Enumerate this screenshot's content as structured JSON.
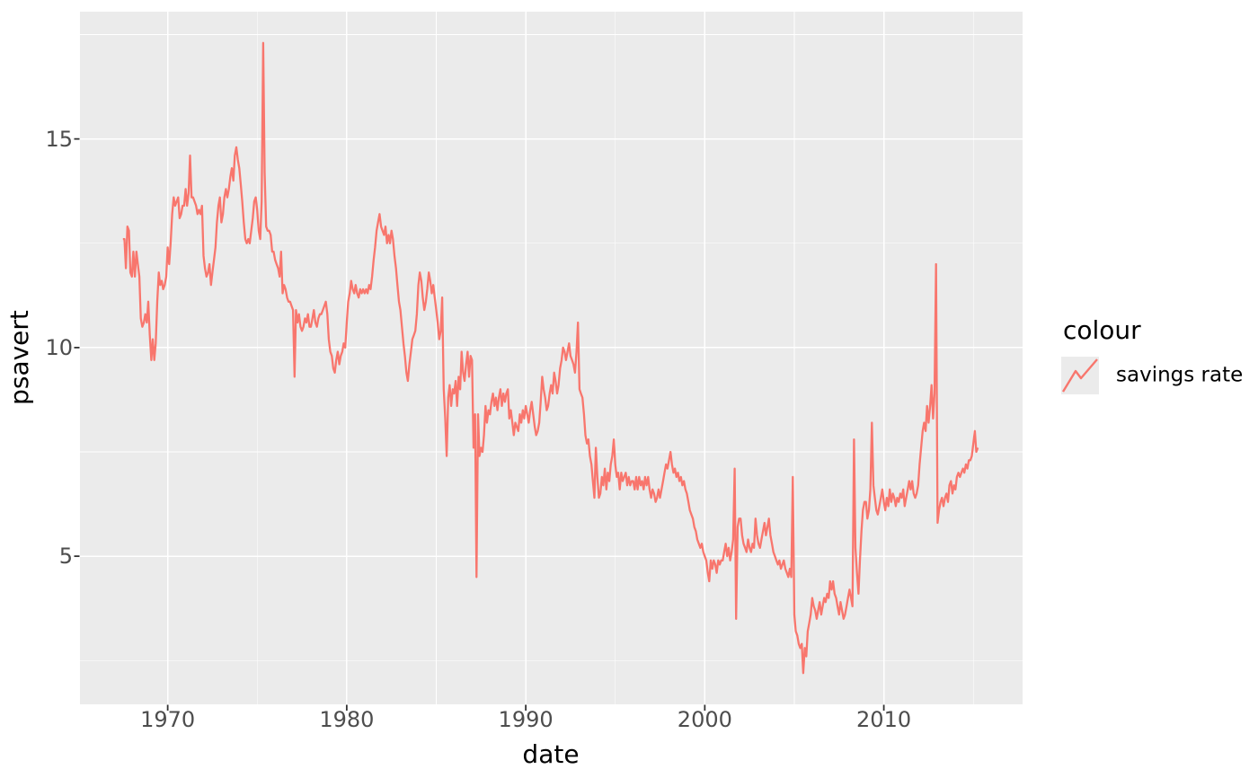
{
  "figure": {
    "x_axis_title": "date",
    "y_axis_title": "psavert",
    "legend": {
      "title": "colour",
      "items": [
        {
          "label": "savings rate"
        }
      ]
    }
  },
  "colors": {
    "line": "#F8766D",
    "panel_bg": "#EBEBEB",
    "grid": "#FFFFFF",
    "tick_mark": "#333333",
    "tick_label": "#4D4D4D",
    "title_text": "#000000",
    "legend_key_bg": "#EBEBEB"
  },
  "chart_data": {
    "type": "line",
    "title": "",
    "xlabel": "date",
    "ylabel": "psavert",
    "legend_title": "colour",
    "legend_position": "right",
    "grid": true,
    "x_unit": "decimal_year",
    "xlim": [
      1965.1,
      2017.75
    ],
    "ylim": [
      1.45,
      18.05
    ],
    "x_ticks": [
      1970,
      1980,
      1990,
      2000,
      2010
    ],
    "x_minor_ticks": [
      1975,
      1985,
      1995,
      2005,
      2015
    ],
    "y_ticks": [
      5,
      10,
      15
    ],
    "y_minor_ticks": [
      2.5,
      7.5,
      12.5,
      17.5
    ],
    "series": [
      {
        "name": "savings rate",
        "color": "#F8766D",
        "start": 1967.5,
        "samples_per_year": 12,
        "values": [
          12.6,
          12.6,
          11.9,
          12.9,
          12.8,
          11.8,
          11.7,
          12.3,
          11.7,
          12.3,
          12.0,
          11.7,
          10.7,
          10.5,
          10.6,
          10.8,
          10.6,
          11.1,
          10.3,
          9.7,
          10.2,
          9.7,
          10.1,
          11.1,
          11.8,
          11.5,
          11.6,
          11.4,
          11.5,
          11.7,
          12.4,
          12.0,
          12.5,
          13.2,
          13.6,
          13.4,
          13.5,
          13.6,
          13.1,
          13.2,
          13.4,
          13.4,
          13.8,
          13.4,
          13.7,
          14.6,
          13.6,
          13.6,
          13.5,
          13.4,
          13.2,
          13.3,
          13.2,
          13.4,
          12.2,
          11.9,
          11.7,
          11.8,
          12.0,
          11.5,
          11.8,
          12.1,
          12.4,
          13.0,
          13.4,
          13.6,
          13.0,
          13.2,
          13.6,
          13.8,
          13.6,
          13.8,
          14.1,
          14.3,
          14.0,
          14.6,
          14.8,
          14.5,
          14.3,
          13.9,
          13.5,
          13.0,
          12.6,
          12.5,
          12.6,
          12.5,
          12.8,
          13.1,
          13.5,
          13.6,
          13.3,
          12.8,
          12.6,
          13.5,
          17.3,
          14.2,
          12.9,
          12.8,
          12.8,
          12.7,
          12.3,
          12.3,
          12.1,
          12.0,
          11.9,
          11.7,
          12.3,
          11.3,
          11.5,
          11.4,
          11.2,
          11.1,
          11.1,
          11.0,
          10.9,
          9.3,
          10.9,
          10.6,
          10.8,
          10.5,
          10.4,
          10.5,
          10.7,
          10.6,
          10.8,
          10.5,
          10.5,
          10.7,
          10.9,
          10.6,
          10.5,
          10.7,
          10.8,
          10.8,
          10.9,
          11.0,
          11.1,
          10.8,
          10.2,
          9.9,
          9.8,
          9.5,
          9.4,
          9.7,
          9.9,
          9.6,
          9.8,
          9.9,
          10.1,
          10.0,
          10.6,
          11.1,
          11.3,
          11.6,
          11.4,
          11.3,
          11.5,
          11.3,
          11.2,
          11.4,
          11.3,
          11.4,
          11.3,
          11.4,
          11.3,
          11.5,
          11.4,
          11.7,
          12.1,
          12.4,
          12.8,
          13.0,
          13.2,
          12.9,
          12.8,
          12.7,
          12.9,
          12.5,
          12.7,
          12.5,
          12.8,
          12.6,
          12.2,
          11.9,
          11.5,
          11.1,
          10.9,
          10.5,
          10.1,
          9.8,
          9.4,
          9.2,
          9.6,
          9.9,
          10.2,
          10.3,
          10.4,
          10.8,
          11.5,
          11.8,
          11.6,
          11.2,
          10.9,
          11.1,
          11.4,
          11.8,
          11.6,
          11.3,
          11.5,
          11.2,
          10.9,
          10.6,
          10.2,
          10.4,
          11.2,
          9.0,
          8.3,
          7.4,
          8.8,
          9.1,
          8.6,
          9.0,
          8.9,
          9.2,
          8.6,
          9.3,
          9.0,
          9.9,
          9.4,
          9.2,
          9.6,
          9.9,
          9.3,
          9.8,
          9.7,
          7.6,
          8.4,
          4.5,
          8.4,
          7.4,
          7.6,
          7.5,
          7.9,
          8.6,
          8.2,
          8.5,
          8.4,
          8.7,
          8.9,
          8.6,
          8.8,
          8.5,
          8.8,
          9.0,
          8.6,
          8.9,
          8.7,
          8.9,
          9.0,
          8.3,
          8.5,
          8.2,
          7.9,
          8.2,
          8.1,
          8.0,
          8.4,
          8.2,
          8.5,
          8.3,
          8.6,
          8.4,
          8.2,
          8.5,
          8.7,
          8.4,
          8.1,
          7.9,
          8.0,
          8.2,
          8.7,
          9.3,
          9.0,
          8.8,
          8.5,
          8.6,
          8.9,
          9.1,
          8.9,
          9.4,
          9.2,
          8.9,
          9.1,
          9.5,
          9.7,
          10.0,
          9.9,
          9.7,
          9.9,
          10.1,
          9.8,
          9.7,
          9.6,
          9.4,
          9.9,
          10.6,
          9.0,
          8.9,
          8.8,
          8.4,
          7.9,
          7.7,
          7.8,
          7.4,
          7.2,
          6.8,
          6.4,
          7.6,
          6.9,
          6.4,
          6.5,
          6.9,
          6.7,
          7.1,
          6.6,
          7.0,
          6.8,
          7.2,
          7.4,
          7.8,
          7.2,
          6.9,
          7.0,
          6.6,
          7.0,
          6.8,
          6.9,
          7.0,
          6.7,
          6.9,
          6.7,
          6.8,
          6.8,
          6.6,
          6.9,
          6.6,
          6.9,
          6.7,
          6.8,
          6.6,
          6.9,
          6.7,
          6.9,
          6.6,
          6.4,
          6.6,
          6.5,
          6.3,
          6.4,
          6.6,
          6.4,
          6.6,
          6.8,
          7.0,
          7.2,
          7.1,
          7.3,
          7.5,
          7.2,
          7.0,
          7.1,
          6.9,
          7.0,
          6.8,
          6.9,
          6.7,
          6.8,
          6.6,
          6.5,
          6.3,
          6.1,
          6.0,
          5.9,
          5.7,
          5.6,
          5.4,
          5.3,
          5.2,
          5.3,
          5.1,
          5.0,
          4.9,
          4.6,
          4.4,
          4.9,
          4.7,
          4.9,
          4.8,
          4.6,
          4.9,
          4.8,
          4.9,
          4.9,
          5.1,
          5.3,
          5.0,
          5.2,
          4.9,
          5.1,
          5.4,
          7.1,
          3.5,
          5.7,
          5.9,
          5.9,
          5.5,
          5.3,
          5.2,
          5.1,
          5.4,
          5.2,
          5.1,
          5.3,
          5.2,
          5.9,
          5.5,
          5.3,
          5.2,
          5.4,
          5.6,
          5.8,
          5.5,
          5.7,
          5.9,
          5.5,
          5.3,
          5.1,
          5.0,
          4.9,
          4.8,
          4.9,
          4.7,
          4.8,
          4.9,
          4.7,
          4.6,
          4.5,
          4.7,
          4.5,
          6.9,
          3.6,
          3.2,
          3.1,
          2.9,
          2.8,
          2.9,
          2.2,
          2.8,
          2.6,
          3.2,
          3.4,
          3.6,
          4.0,
          3.8,
          3.7,
          3.5,
          3.7,
          3.9,
          3.6,
          3.8,
          4.0,
          3.9,
          4.1,
          4.0,
          4.4,
          4.2,
          4.4,
          4.1,
          4.0,
          3.8,
          3.6,
          3.9,
          3.7,
          3.5,
          3.6,
          3.8,
          4.0,
          4.2,
          4.0,
          3.8,
          7.8,
          5.2,
          4.6,
          4.1,
          4.9,
          5.6,
          6.1,
          6.3,
          6.3,
          5.9,
          6.1,
          6.6,
          8.2,
          6.7,
          6.4,
          6.1,
          6.0,
          6.2,
          6.4,
          6.6,
          6.3,
          6.1,
          6.4,
          6.2,
          6.6,
          6.3,
          6.5,
          6.4,
          6.2,
          6.4,
          6.3,
          6.5,
          6.4,
          6.6,
          6.2,
          6.4,
          6.6,
          6.8,
          6.6,
          6.8,
          6.5,
          6.4,
          6.5,
          6.7,
          7.2,
          7.6,
          8.0,
          8.2,
          8.0,
          8.6,
          8.2,
          8.6,
          9.1,
          8.3,
          8.9,
          12.0,
          5.8,
          6.1,
          6.3,
          6.4,
          6.2,
          6.4,
          6.5,
          6.3,
          6.7,
          6.8,
          6.5,
          6.7,
          6.6,
          6.9,
          7.0,
          6.9,
          7.0,
          7.1,
          7.0,
          7.2,
          7.1,
          7.3,
          7.3,
          7.4,
          7.7,
          8.0,
          7.5,
          7.6
        ]
      }
    ]
  }
}
